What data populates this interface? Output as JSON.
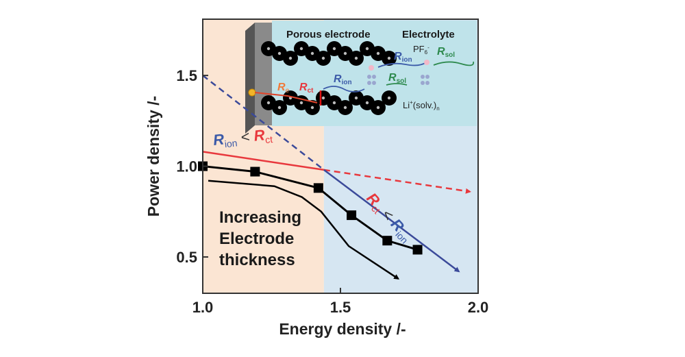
{
  "chart_data": {
    "type": "line",
    "xlabel": "Energy density /-",
    "ylabel": "Power density /-",
    "xlim": [
      1.0,
      2.0
    ],
    "ylim": [
      0.3,
      1.81
    ],
    "x_ticks": [
      "1.0",
      "1.5",
      "2.0"
    ],
    "y_ticks": [
      "0.5",
      "1.0",
      "1.5"
    ],
    "x_tick_values": [
      1.0,
      1.5,
      2.0
    ],
    "y_tick_values": [
      0.5,
      1.0,
      1.5
    ],
    "grid": false,
    "regions": [
      {
        "x_range": [
          1.0,
          1.44
        ],
        "color": "#fbe5d3"
      },
      {
        "x_range": [
          1.44,
          2.0
        ],
        "color": "#d6e6f2"
      }
    ],
    "series": [
      {
        "style": "markers-line",
        "color": "#000000",
        "x": [
          1.0,
          1.19,
          1.42,
          1.54,
          1.67,
          1.78
        ],
        "y": [
          1.0,
          0.97,
          0.88,
          0.73,
          0.59,
          0.54
        ]
      },
      {
        "style": "arrow-line",
        "color": "#000000",
        "x": [
          1.02,
          1.26,
          1.36,
          1.43,
          1.53,
          1.71
        ],
        "y": [
          0.92,
          0.89,
          0.83,
          0.75,
          0.56,
          0.38
        ]
      },
      {
        "style": "solid",
        "color": "#e8383d",
        "x": [
          1.0,
          1.44
        ],
        "y": [
          1.08,
          0.98
        ]
      },
      {
        "style": "dashed-arrow",
        "color": "#e8383d",
        "x": [
          1.44,
          1.97
        ],
        "y": [
          0.98,
          0.86
        ]
      },
      {
        "style": "dashed",
        "color": "#3b4a9a",
        "x": [
          1.0,
          1.44
        ],
        "y": [
          1.5,
          0.98
        ]
      },
      {
        "style": "solid-arrow",
        "color": "#3b4a9a",
        "x": [
          1.44,
          1.93
        ],
        "y": [
          0.98,
          0.42
        ]
      }
    ],
    "annotations": {
      "thickness": [
        "Increasing",
        "Electrode",
        "thickness"
      ],
      "rion_lt_rct": {
        "a": "R",
        "a_sub": "ion",
        "op": " < ",
        "b": "R",
        "b_sub": "ct"
      },
      "rct_lt_rion": {
        "a": "R",
        "a_sub": "ct",
        "op": " < ",
        "b": "R",
        "b_sub": "ion"
      }
    },
    "inset": {
      "title_electrode": "Porous electrode",
      "title_electrolyte": "Electrolyte",
      "r_e": "R",
      "r_e_sub": "e",
      "r_ct": "R",
      "r_ct_sub": "ct",
      "r_ion": "R",
      "r_ion_sub": "ion",
      "r_sol": "R",
      "r_sol_sub": "sol",
      "pf6": "PF",
      "pf6_sub": "6",
      "pf6_sup": "-",
      "li": "Li",
      "li_sup": "+",
      "li_rest": "(solv.)",
      "li_sub": "n"
    },
    "colors": {
      "red": "#e8383d",
      "blue": "#3b5aa8",
      "green": "#2e8a4e",
      "orange": "#f07a3a"
    }
  }
}
